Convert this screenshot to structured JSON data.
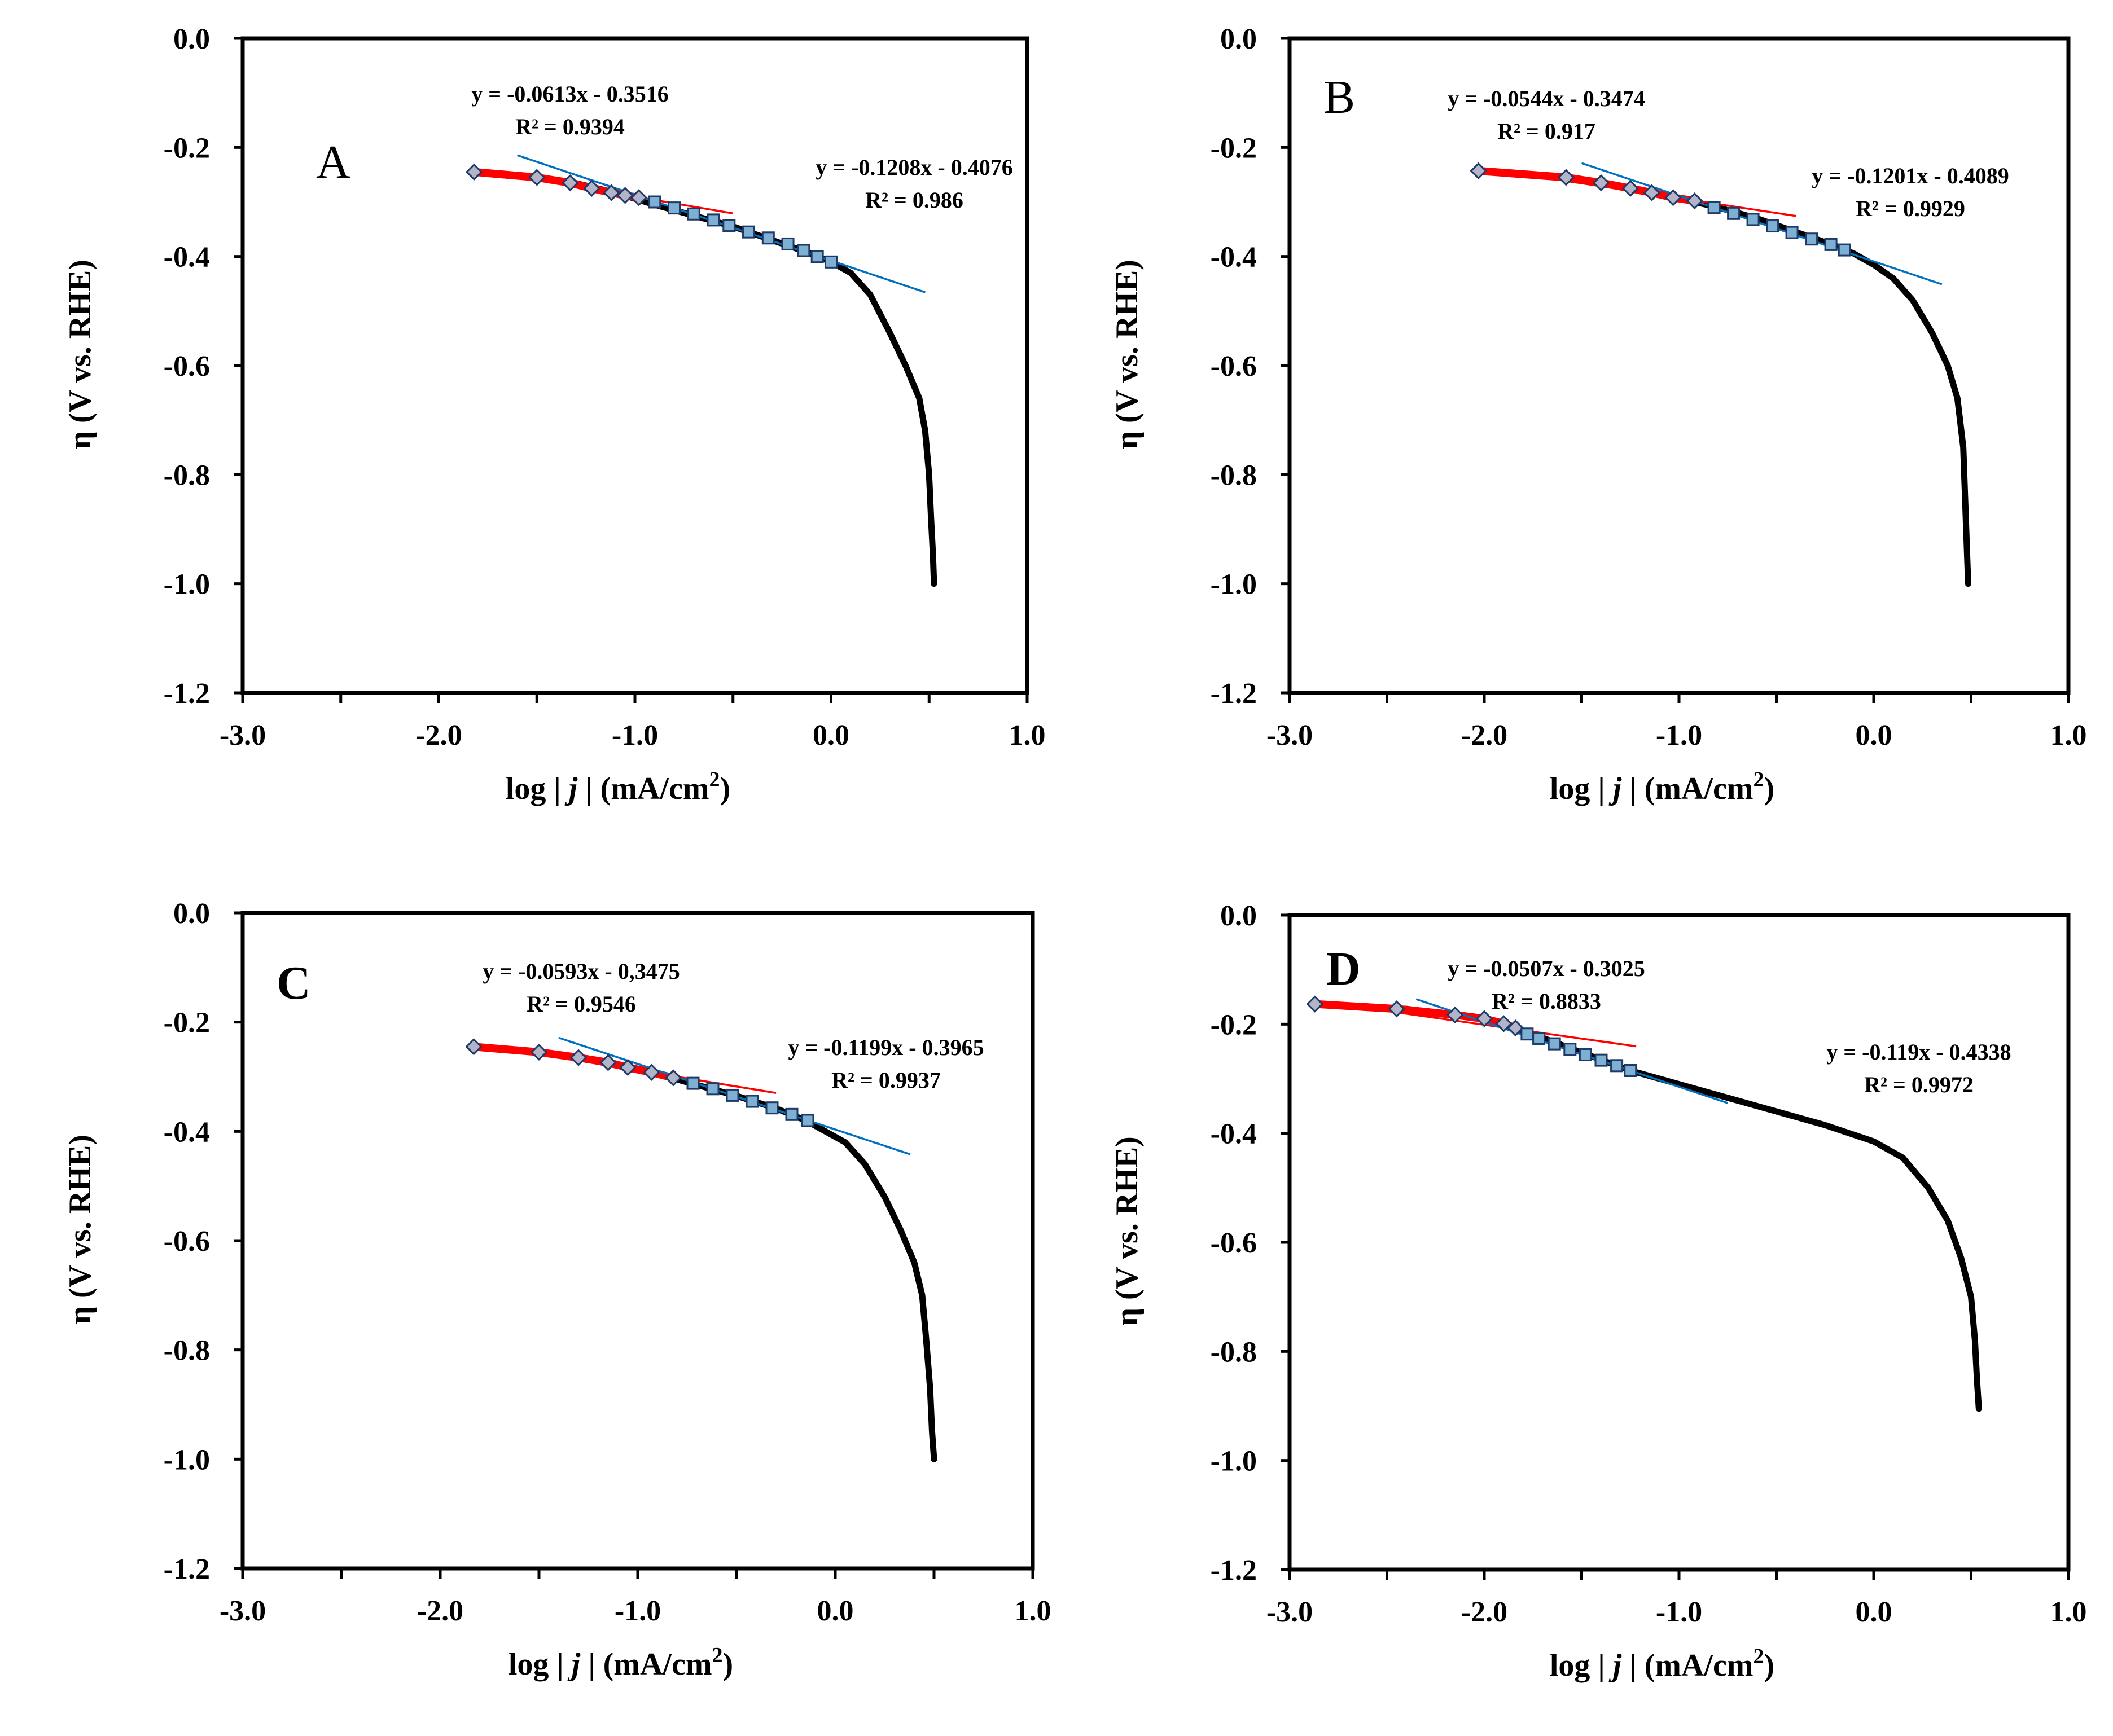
{
  "figure": {
    "xlabel_prefix": "log | ",
    "xlabel_var": "j",
    "xlabel_suffix": " | (mA/cm",
    "xlabel_sup": "2",
    "xlabel_close": ")",
    "ylabel": "η (V vs. RHE)"
  },
  "colors": {
    "axes": "#000000",
    "curve": "#000000",
    "fit_low": "#ff0000",
    "fit_high": "#0070c0",
    "marker_diamond_fill": "#b4b4c8",
    "marker_square_fill": "#7eb0d4",
    "marker_stroke": "#1f3a66"
  },
  "chart_data": [
    {
      "type": "line",
      "panel": "A",
      "label_bold": false,
      "title": "",
      "xlabel": "log | j | (mA/cm2)",
      "ylabel": "η (V vs. RHE)",
      "xlim": [
        -3.0,
        1.0
      ],
      "ylim": [
        -1.2,
        0.0
      ],
      "xticks": [
        "-3.0",
        "-2.0",
        "-1.0",
        "0.0",
        "1.0"
      ],
      "yticks": [
        "0.0",
        "-0.2",
        "-0.4",
        "-0.6",
        "-0.8",
        "-1.0",
        "-1.2"
      ],
      "curve": {
        "x": [
          -1.82,
          -1.5,
          -1.33,
          -1.1,
          -0.9,
          -0.7,
          -0.5,
          -0.3,
          -0.1,
          0.0,
          0.1,
          0.2,
          0.3,
          0.38,
          0.45,
          0.48,
          0.5,
          0.51,
          0.52,
          0.525
        ],
        "y": [
          -0.245,
          -0.255,
          -0.263,
          -0.283,
          -0.305,
          -0.325,
          -0.345,
          -0.37,
          -0.395,
          -0.41,
          -0.43,
          -0.47,
          -0.54,
          -0.6,
          -0.66,
          -0.72,
          -0.8,
          -0.88,
          -0.95,
          -1.0
        ]
      },
      "markers_diamond": {
        "x": [
          -1.82,
          -1.5,
          -1.33,
          -1.22,
          -1.12,
          -1.05,
          -0.98
        ],
        "y": [
          -0.245,
          -0.255,
          -0.265,
          -0.275,
          -0.283,
          -0.288,
          -0.292
        ]
      },
      "markers_square": {
        "x": [
          -0.9,
          -0.8,
          -0.7,
          -0.6,
          -0.52,
          -0.42,
          -0.32,
          -0.22,
          -0.14,
          -0.07,
          0.0
        ],
        "y": [
          -0.3,
          -0.311,
          -0.322,
          -0.333,
          -0.343,
          -0.355,
          -0.366,
          -0.377,
          -0.389,
          -0.4,
          -0.41
        ]
      },
      "fit_low": {
        "x": [
          -1.82,
          -0.5
        ],
        "slope": -0.0613,
        "intercept": -0.3516
      },
      "fit_high": {
        "x": [
          -1.6,
          0.48
        ],
        "slope": -0.1208,
        "intercept": -0.4076
      },
      "eq_low": {
        "eq": "y = -0.0613x - 0.3516",
        "r2": "R² = 0.9394"
      },
      "eq_high": {
        "eq": "y = -0.1208x - 0.4076",
        "r2": "R² = 0.986"
      }
    },
    {
      "type": "line",
      "panel": "B",
      "label_bold": false,
      "title": "",
      "xlabel": "log | j | (mA/cm2)",
      "ylabel": "η (V vs. RHE)",
      "xlim": [
        -3.0,
        1.0
      ],
      "ylim": [
        -1.2,
        0.0
      ],
      "xticks": [
        "-3.0",
        "-2.0",
        "-1.0",
        "0.0",
        "1.0"
      ],
      "yticks": [
        "0.0",
        "-0.2",
        "-0.4",
        "-0.6",
        "-0.8",
        "-1.0",
        "-1.2"
      ],
      "curve": {
        "x": [
          -2.03,
          -1.6,
          -1.4,
          -1.2,
          -1.0,
          -0.8,
          -0.6,
          -0.4,
          -0.2,
          -0.1,
          0.0,
          0.1,
          0.2,
          0.3,
          0.38,
          0.43,
          0.46,
          0.47,
          0.48,
          0.485
        ],
        "y": [
          -0.243,
          -0.255,
          -0.265,
          -0.28,
          -0.293,
          -0.31,
          -0.33,
          -0.355,
          -0.38,
          -0.395,
          -0.415,
          -0.44,
          -0.48,
          -0.54,
          -0.6,
          -0.66,
          -0.75,
          -0.85,
          -0.95,
          -1.0
        ]
      },
      "markers_diamond": {
        "x": [
          -2.03,
          -1.58,
          -1.4,
          -1.25,
          -1.14,
          -1.03,
          -0.92
        ],
        "y": [
          -0.243,
          -0.255,
          -0.265,
          -0.275,
          -0.283,
          -0.292,
          -0.298
        ]
      },
      "markers_square": {
        "x": [
          -0.82,
          -0.72,
          -0.62,
          -0.52,
          -0.42,
          -0.32,
          -0.22,
          -0.15
        ],
        "y": [
          -0.31,
          -0.321,
          -0.332,
          -0.344,
          -0.356,
          -0.368,
          -0.378,
          -0.388
        ]
      },
      "fit_low": {
        "x": [
          -2.03,
          -0.4
        ],
        "slope": -0.0544,
        "intercept": -0.3474
      },
      "fit_high": {
        "x": [
          -1.5,
          0.35
        ],
        "slope": -0.1201,
        "intercept": -0.4089
      },
      "eq_low": {
        "eq": "y = -0.0544x - 0.3474",
        "r2": "R² = 0.917"
      },
      "eq_high": {
        "eq": "y = -0.1201x - 0.4089",
        "r2": "R² = 0.9929"
      }
    },
    {
      "type": "line",
      "panel": "C",
      "label_bold": true,
      "title": "",
      "xlabel": "log | j | (mA/cm2)",
      "ylabel": "η (V vs. RHE)",
      "xlim": [
        -3.0,
        1.0
      ],
      "ylim": [
        -1.2,
        0.0
      ],
      "xticks": [
        "-3.0",
        "-2.0",
        "-1.0",
        "0.0",
        "1.0"
      ],
      "yticks": [
        "0.0",
        "-0.2",
        "-0.4",
        "-0.6",
        "-0.8",
        "-1.0",
        "-1.2"
      ],
      "curve": {
        "x": [
          -1.83,
          -1.5,
          -1.3,
          -1.1,
          -0.9,
          -0.7,
          -0.5,
          -0.3,
          -0.15,
          -0.05,
          0.05,
          0.15,
          0.25,
          0.33,
          0.4,
          0.44,
          0.46,
          0.48,
          0.49,
          0.5
        ],
        "y": [
          -0.245,
          -0.255,
          -0.265,
          -0.28,
          -0.295,
          -0.315,
          -0.335,
          -0.358,
          -0.38,
          -0.4,
          -0.42,
          -0.46,
          -0.52,
          -0.58,
          -0.64,
          -0.7,
          -0.78,
          -0.87,
          -0.95,
          -1.0
        ]
      },
      "markers_diamond": {
        "x": [
          -1.83,
          -1.5,
          -1.3,
          -1.15,
          -1.05,
          -0.93,
          -0.82
        ],
        "y": [
          -0.245,
          -0.255,
          -0.265,
          -0.274,
          -0.283,
          -0.292,
          -0.302
        ]
      },
      "markers_square": {
        "x": [
          -0.72,
          -0.62,
          -0.52,
          -0.42,
          -0.32,
          -0.22,
          -0.14
        ],
        "y": [
          -0.312,
          -0.322,
          -0.334,
          -0.345,
          -0.357,
          -0.369,
          -0.38
        ]
      },
      "fit_low": {
        "x": [
          -1.83,
          -0.3
        ],
        "slope": -0.0593,
        "intercept": -0.3475
      },
      "fit_high": {
        "x": [
          -1.4,
          0.38
        ],
        "slope": -0.1199,
        "intercept": -0.3965
      },
      "eq_low": {
        "eq": "y = -0.0593x - 0,3475",
        "r2": "R² = 0.9546"
      },
      "eq_high": {
        "eq": "y = -0.1199x - 0.3965",
        "r2": "R² = 0.9937"
      }
    },
    {
      "type": "line",
      "panel": "D",
      "label_bold": true,
      "title": "",
      "xlabel": "log | j | (mA/cm2)",
      "ylabel": "η (V vs. RHE)",
      "xlim": [
        -3.0,
        1.0
      ],
      "ylim": [
        -1.2,
        0.0
      ],
      "xticks": [
        "-3.0",
        "-2.0",
        "-1.0",
        "0.0",
        "1.0"
      ],
      "yticks": [
        "0.0",
        "-0.2",
        "-0.4",
        "-0.6",
        "-0.8",
        "-1.0",
        "-1.2"
      ],
      "curve": {
        "x": [
          -2.87,
          -2.4,
          -2.1,
          -1.9,
          -1.7,
          -1.5,
          -1.25,
          -1.0,
          -0.75,
          -0.5,
          -0.25,
          0.0,
          0.15,
          0.28,
          0.38,
          0.45,
          0.5,
          0.52,
          0.53,
          0.54
        ],
        "y": [
          -0.163,
          -0.172,
          -0.185,
          -0.2,
          -0.225,
          -0.252,
          -0.285,
          -0.31,
          -0.335,
          -0.36,
          -0.385,
          -0.415,
          -0.445,
          -0.5,
          -0.56,
          -0.63,
          -0.7,
          -0.78,
          -0.85,
          -0.905
        ]
      },
      "markers_diamond": {
        "x": [
          -2.87,
          -2.45,
          -2.15,
          -2.0,
          -1.9,
          -1.84
        ],
        "y": [
          -0.163,
          -0.172,
          -0.183,
          -0.19,
          -0.199,
          -0.207
        ]
      },
      "markers_square": {
        "x": [
          -1.78,
          -1.72,
          -1.64,
          -1.56,
          -1.48,
          -1.4,
          -1.32,
          -1.25
        ],
        "y": [
          -0.218,
          -0.226,
          -0.236,
          -0.246,
          -0.256,
          -0.266,
          -0.276,
          -0.285
        ]
      },
      "fit_low": {
        "x": [
          -2.87,
          -1.22
        ],
        "slope": -0.0507,
        "intercept": -0.3025
      },
      "fit_high": {
        "x": [
          -2.35,
          -0.75
        ],
        "slope": -0.119,
        "intercept": -0.4338
      },
      "eq_low": {
        "eq": "y = -0.0507x - 0.3025",
        "r2": "R² = 0.8833"
      },
      "eq_high": {
        "eq": "y = -0.119x - 0.4338",
        "r2": "R² = 0.9972"
      }
    }
  ]
}
